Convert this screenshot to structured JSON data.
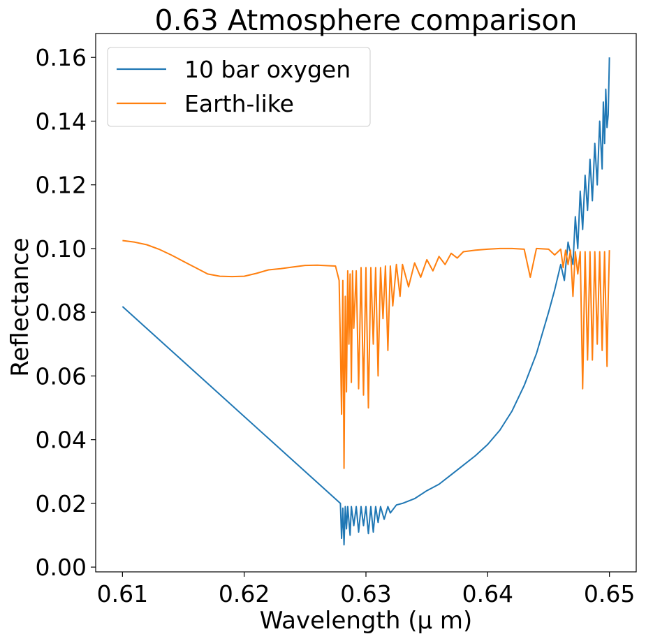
{
  "chart_data": {
    "type": "line",
    "title": "0.63 Atmosphere comparison",
    "xlabel": "Wavelength (μ m)",
    "ylabel": "Reflectance",
    "xlim": [
      0.6078,
      0.6522
    ],
    "ylim": [
      -0.0015,
      0.1675
    ],
    "xticks": [
      0.61,
      0.62,
      0.63,
      0.64,
      0.65
    ],
    "xtick_labels": [
      "0.61",
      "0.62",
      "0.63",
      "0.64",
      "0.65"
    ],
    "yticks": [
      0.0,
      0.02,
      0.04,
      0.06,
      0.08,
      0.1,
      0.12,
      0.14,
      0.16
    ],
    "ytick_labels": [
      "0.00",
      "0.02",
      "0.04",
      "0.06",
      "0.08",
      "0.10",
      "0.12",
      "0.14",
      "0.16"
    ],
    "grid": false,
    "legend_position": "upper-left",
    "series": [
      {
        "name": "10 bar oxygen",
        "color": "#1f77b4",
        "x": [
          0.61,
          0.6279,
          0.628,
          0.6281,
          0.6282,
          0.6283,
          0.6284,
          0.6285,
          0.6287,
          0.6288,
          0.629,
          0.6292,
          0.6294,
          0.6296,
          0.6298,
          0.63,
          0.6302,
          0.6304,
          0.6306,
          0.6308,
          0.631,
          0.6312,
          0.6315,
          0.6318,
          0.632,
          0.6325,
          0.633,
          0.634,
          0.635,
          0.636,
          0.637,
          0.638,
          0.639,
          0.64,
          0.641,
          0.642,
          0.643,
          0.644,
          0.645,
          0.6455,
          0.646,
          0.6463,
          0.6466,
          0.647,
          0.6472,
          0.6474,
          0.6476,
          0.6478,
          0.648,
          0.6482,
          0.6484,
          0.6486,
          0.6488,
          0.649,
          0.6492,
          0.6494,
          0.6495,
          0.6496,
          0.6497,
          0.6498,
          0.6499,
          0.65
        ],
        "y": [
          0.0818,
          0.02,
          0.009,
          0.0185,
          0.007,
          0.019,
          0.012,
          0.019,
          0.01,
          0.019,
          0.013,
          0.019,
          0.011,
          0.019,
          0.013,
          0.019,
          0.0105,
          0.019,
          0.011,
          0.019,
          0.014,
          0.019,
          0.015,
          0.019,
          0.017,
          0.0195,
          0.02,
          0.0215,
          0.024,
          0.026,
          0.029,
          0.032,
          0.035,
          0.0385,
          0.043,
          0.049,
          0.057,
          0.067,
          0.08,
          0.087,
          0.095,
          0.09,
          0.102,
          0.095,
          0.11,
          0.1,
          0.118,
          0.106,
          0.123,
          0.112,
          0.128,
          0.115,
          0.133,
          0.12,
          0.14,
          0.125,
          0.146,
          0.133,
          0.15,
          0.138,
          0.142,
          0.16
        ]
      },
      {
        "name": "Earth-like",
        "color": "#ff7f0e",
        "x": [
          0.61,
          0.611,
          0.612,
          0.613,
          0.614,
          0.615,
          0.616,
          0.617,
          0.618,
          0.619,
          0.62,
          0.621,
          0.622,
          0.623,
          0.624,
          0.625,
          0.626,
          0.627,
          0.6275,
          0.6278,
          0.6279,
          0.628,
          0.6281,
          0.6282,
          0.6283,
          0.6284,
          0.6285,
          0.6286,
          0.6287,
          0.6288,
          0.6289,
          0.629,
          0.6292,
          0.6294,
          0.6296,
          0.6298,
          0.63,
          0.6302,
          0.6304,
          0.6306,
          0.6308,
          0.631,
          0.6312,
          0.6314,
          0.6316,
          0.6318,
          0.632,
          0.6322,
          0.6325,
          0.6328,
          0.633,
          0.6335,
          0.634,
          0.6345,
          0.635,
          0.6355,
          0.636,
          0.6365,
          0.637,
          0.6375,
          0.638,
          0.639,
          0.64,
          0.641,
          0.642,
          0.643,
          0.6435,
          0.644,
          0.645,
          0.6455,
          0.646,
          0.6462,
          0.6464,
          0.6466,
          0.6468,
          0.647,
          0.6472,
          0.6474,
          0.6476,
          0.6478,
          0.648,
          0.6482,
          0.6484,
          0.6486,
          0.6488,
          0.649,
          0.6492,
          0.6494,
          0.6496,
          0.6498,
          0.6499,
          0.65
        ],
        "y": [
          0.1025,
          0.102,
          0.1012,
          0.0998,
          0.098,
          0.096,
          0.094,
          0.092,
          0.0913,
          0.0912,
          0.0913,
          0.0922,
          0.0933,
          0.0937,
          0.0942,
          0.0947,
          0.0948,
          0.0946,
          0.0945,
          0.09,
          0.07,
          0.048,
          0.09,
          0.031,
          0.085,
          0.055,
          0.093,
          0.07,
          0.092,
          0.058,
          0.093,
          0.075,
          0.093,
          0.056,
          0.094,
          0.054,
          0.094,
          0.05,
          0.094,
          0.07,
          0.094,
          0.06,
          0.094,
          0.078,
          0.0945,
          0.068,
          0.0945,
          0.082,
          0.095,
          0.085,
          0.095,
          0.088,
          0.0955,
          0.091,
          0.0965,
          0.093,
          0.0975,
          0.095,
          0.0985,
          0.097,
          0.099,
          0.0995,
          0.0998,
          0.1,
          0.1,
          0.0998,
          0.091,
          0.1,
          0.0998,
          0.098,
          0.0998,
          0.094,
          0.0995,
          0.095,
          0.0995,
          0.085,
          0.099,
          0.092,
          0.099,
          0.056,
          0.099,
          0.065,
          0.099,
          0.065,
          0.099,
          0.07,
          0.099,
          0.068,
          0.099,
          0.063,
          0.084,
          0.0995
        ]
      }
    ]
  }
}
